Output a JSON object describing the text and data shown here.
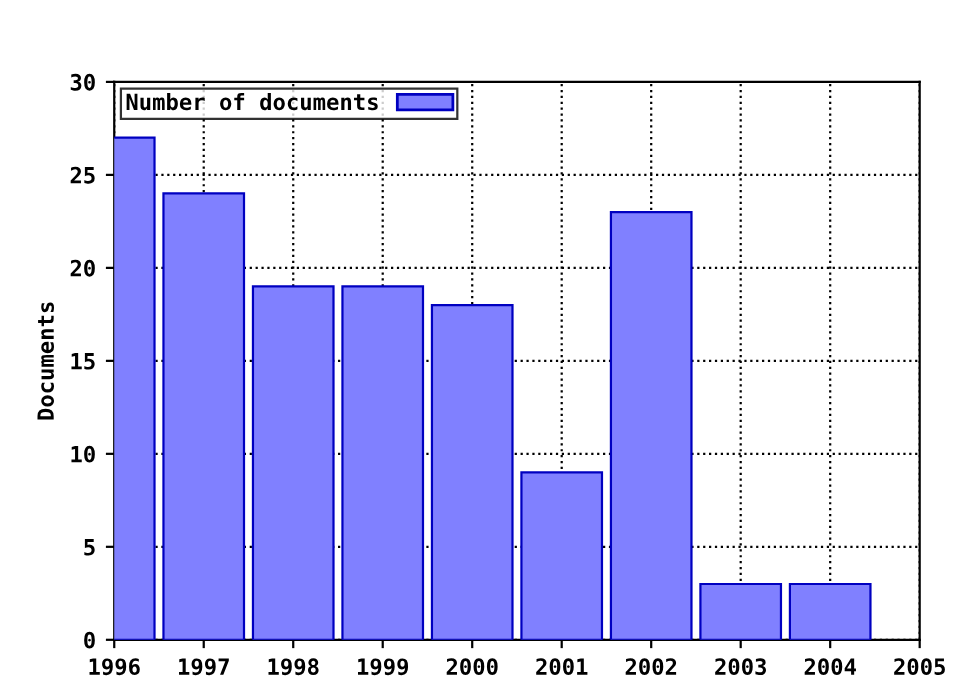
{
  "chart_data": {
    "type": "bar",
    "ylabel": "Documents",
    "x": [
      1996,
      1997,
      1998,
      1999,
      2000,
      2001,
      2002,
      2003,
      2004
    ],
    "series": [
      {
        "name": "Number of documents",
        "color": "#8080ff",
        "values": [
          27,
          24,
          19,
          19,
          18,
          9,
          23,
          3,
          3
        ]
      }
    ],
    "xlim": [
      1996,
      2005
    ],
    "xticks": [
      1996,
      1997,
      1998,
      1999,
      2000,
      2001,
      2002,
      2003,
      2004,
      2005
    ],
    "ylim": [
      0,
      30
    ],
    "yticks": [
      0,
      5,
      10,
      15,
      20,
      25,
      30
    ],
    "grid": true,
    "legend": "top left"
  }
}
